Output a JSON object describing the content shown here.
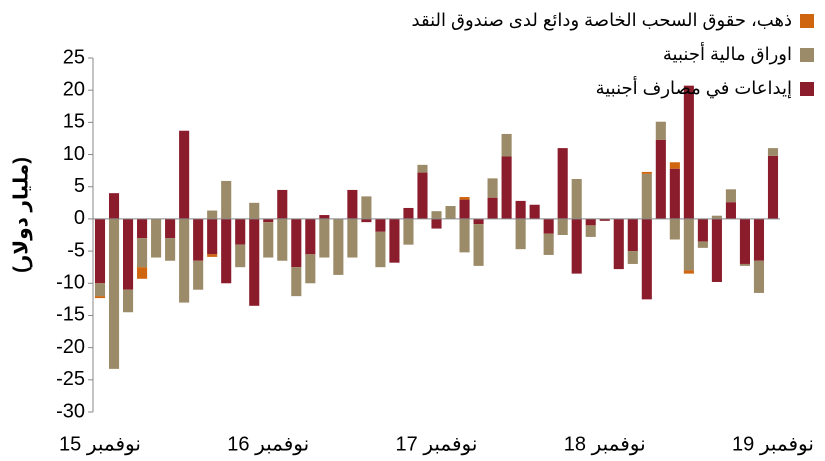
{
  "chart_data": {
    "type": "bar",
    "stacked": true,
    "y_label": "(مليار دولار)",
    "categories": [
      "نوفمبر 15",
      null,
      null,
      null,
      null,
      null,
      null,
      null,
      null,
      null,
      null,
      null,
      "نوفمبر 16",
      null,
      null,
      null,
      null,
      null,
      null,
      null,
      null,
      null,
      null,
      null,
      "نوفمبر 17",
      null,
      null,
      null,
      null,
      null,
      null,
      null,
      null,
      null,
      null,
      null,
      "نوفمبر 18",
      null,
      null,
      null,
      null,
      null,
      null,
      null,
      null,
      null,
      null,
      null,
      "نوفمبر 19"
    ],
    "series": [
      {
        "name": "إيداعات في مصارف أجنبية",
        "color": "#8b1c2c",
        "values": [
          -10,
          4,
          -11,
          -3,
          0,
          -3,
          13.7,
          -6.5,
          -5.5,
          -10,
          -4,
          -13.5,
          -0.5,
          4.5,
          -7.5,
          -5.5,
          0.6,
          0,
          4.5,
          -0.5,
          -2,
          -6.8,
          1.7,
          7.2,
          -1.5,
          0,
          3,
          -0.8,
          3.3,
          9.7,
          2.8,
          2.2,
          -2.3,
          11,
          -8.5,
          -1,
          -0.3,
          -7.8,
          -5,
          -12.5,
          12.3,
          7.8,
          20.7,
          -3.5,
          -9.8,
          2.6,
          -7,
          -6.5,
          9.8
        ]
      },
      {
        "name": "اوراق مالية أجنبية",
        "color": "#9c8b68",
        "values": [
          -2,
          -23.3,
          -3.5,
          -4.5,
          -6,
          -3.5,
          -13,
          -4.5,
          1.3,
          5.9,
          -3.5,
          2.5,
          -5.5,
          -6.5,
          -4.5,
          -4.5,
          -6,
          -8.7,
          -6,
          3.5,
          -5.5,
          0,
          -4,
          1.2,
          1.2,
          2,
          -5.2,
          -6.5,
          3,
          3.5,
          -4.7,
          0,
          -3.3,
          -2.5,
          6.2,
          -1.8,
          0,
          0,
          -2,
          7,
          2.8,
          -3.2,
          -8,
          -1,
          0.5,
          2,
          -0.3,
          -5,
          1.2
        ]
      },
      {
        "name": "ذهب، حقوق السحب الخاصة ودائع لدى صندوق النقد",
        "color": "#d0650f",
        "values": [
          -0.3,
          0,
          0,
          -1.8,
          0,
          0,
          0,
          0,
          -0.4,
          0,
          0,
          0,
          0,
          0,
          0,
          0,
          0,
          0,
          0,
          0,
          0,
          0,
          0,
          0,
          0,
          0,
          0.4,
          0,
          0,
          0,
          0,
          0,
          0,
          0,
          0,
          0,
          0,
          0,
          0,
          0.3,
          0,
          1,
          -0.5,
          0,
          0,
          0,
          0,
          0,
          0
        ]
      }
    ],
    "ylim": [
      -30,
      25
    ],
    "yticks": [
      -30,
      -25,
      -20,
      -15,
      -10,
      -5,
      0,
      5,
      10,
      15,
      20,
      25
    ]
  }
}
